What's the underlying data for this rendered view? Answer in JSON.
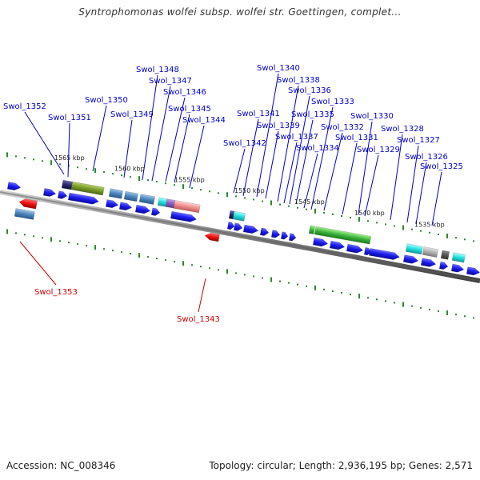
{
  "title": "Syntrophomonas wolfei subsp. wolfei str. Goettingen, complet...",
  "footer": {
    "accession": "Accession: NC_008346",
    "summary": "Topology: circular; Length: 2,936,195 bp; Genes: 2,571"
  },
  "ticks": [
    "1565 kbp",
    "1560 kbp",
    "1555 kbp",
    "1550 kbp",
    "1545 kbp",
    "1540 kbp",
    "1535 kbp"
  ],
  "gene_labels": [
    {
      "id": "Swol_1352",
      "color": "#0000cc"
    },
    {
      "id": "Swol_1351",
      "color": "#0000cc"
    },
    {
      "id": "Swol_1350",
      "color": "#0000cc"
    },
    {
      "id": "Swol_1349",
      "color": "#0000cc"
    },
    {
      "id": "Swol_1348",
      "color": "#0000cc"
    },
    {
      "id": "Swol_1347",
      "color": "#0000cc"
    },
    {
      "id": "Swol_1346",
      "color": "#0000cc"
    },
    {
      "id": "Swol_1345",
      "color": "#0000cc"
    },
    {
      "id": "Swol_1344",
      "color": "#0000cc"
    },
    {
      "id": "Swol_1342",
      "color": "#0000cc"
    },
    {
      "id": "Swol_1341",
      "color": "#0000cc"
    },
    {
      "id": "Swol_1340",
      "color": "#0000cc"
    },
    {
      "id": "Swol_1339",
      "color": "#0000cc"
    },
    {
      "id": "Swol_1338",
      "color": "#0000cc"
    },
    {
      "id": "Swol_1337",
      "color": "#0000cc"
    },
    {
      "id": "Swol_1336",
      "color": "#0000cc"
    },
    {
      "id": "Swol_1335",
      "color": "#0000cc"
    },
    {
      "id": "Swol_1334",
      "color": "#0000cc"
    },
    {
      "id": "Swol_1333",
      "color": "#0000cc"
    },
    {
      "id": "Swol_1332",
      "color": "#0000cc"
    },
    {
      "id": "Swol_1331",
      "color": "#0000cc"
    },
    {
      "id": "Swol_1330",
      "color": "#0000cc"
    },
    {
      "id": "Swol_1329",
      "color": "#0000cc"
    },
    {
      "id": "Swol_1328",
      "color": "#0000cc"
    },
    {
      "id": "Swol_1327",
      "color": "#0000cc"
    },
    {
      "id": "Swol_1326",
      "color": "#0000cc"
    },
    {
      "id": "Swol_1325",
      "color": "#0000cc"
    },
    {
      "id": "Swol_1353",
      "color": "#cc0000"
    },
    {
      "id": "Swol_1343",
      "color": "#cc0000"
    }
  ],
  "colors": {
    "forward_gene": "#1a1aee",
    "reverse_gene": "#dd0000",
    "backbone": "#777777",
    "tick_mark": "#2a8a2a",
    "label_line_forward": "#0000cc",
    "label_line_reverse": "#cc0000"
  }
}
